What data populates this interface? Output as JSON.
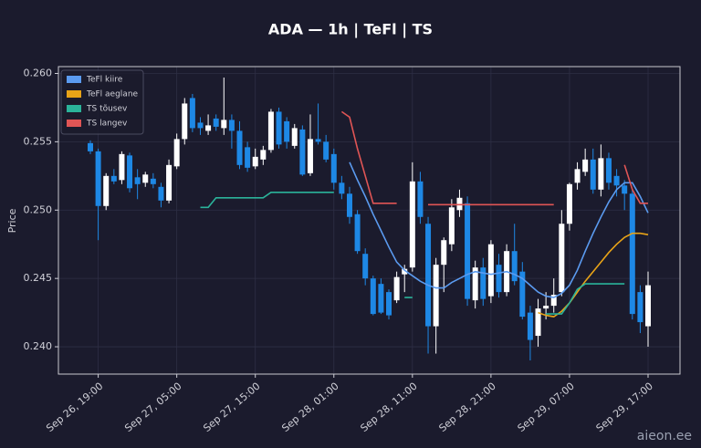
{
  "chart_data": {
    "type": "candlestick",
    "title": "ADA — 1h  |  TeFl  |  TS",
    "y_label": "Price",
    "watermark": "aieon.ee",
    "x": [
      "Sep 26, 18:00",
      "Sep 26, 19:00",
      "Sep 26, 20:00",
      "Sep 26, 21:00",
      "Sep 26, 22:00",
      "Sep 26, 23:00",
      "Sep 27, 00:00",
      "Sep 27, 01:00",
      "Sep 27, 02:00",
      "Sep 27, 03:00",
      "Sep 27, 04:00",
      "Sep 27, 05:00",
      "Sep 27, 06:00",
      "Sep 27, 07:00",
      "Sep 27, 08:00",
      "Sep 27, 09:00",
      "Sep 27, 10:00",
      "Sep 27, 11:00",
      "Sep 27, 12:00",
      "Sep 27, 13:00",
      "Sep 27, 14:00",
      "Sep 27, 15:00",
      "Sep 27, 16:00",
      "Sep 27, 17:00",
      "Sep 27, 18:00",
      "Sep 27, 19:00",
      "Sep 27, 20:00",
      "Sep 27, 21:00",
      "Sep 27, 22:00",
      "Sep 27, 23:00",
      "Sep 28, 00:00",
      "Sep 28, 01:00",
      "Sep 28, 02:00",
      "Sep 28, 03:00",
      "Sep 28, 04:00",
      "Sep 28, 05:00",
      "Sep 28, 06:00",
      "Sep 28, 07:00",
      "Sep 28, 08:00",
      "Sep 28, 09:00",
      "Sep 28, 10:00",
      "Sep 28, 11:00",
      "Sep 28, 12:00",
      "Sep 28, 13:00",
      "Sep 28, 14:00",
      "Sep 28, 15:00",
      "Sep 28, 16:00",
      "Sep 28, 17:00",
      "Sep 28, 18:00",
      "Sep 28, 19:00",
      "Sep 28, 20:00",
      "Sep 28, 21:00",
      "Sep 28, 22:00",
      "Sep 28, 23:00",
      "Sep 29, 00:00",
      "Sep 29, 01:00",
      "Sep 29, 02:00",
      "Sep 29, 03:00",
      "Sep 29, 04:00",
      "Sep 29, 05:00",
      "Sep 29, 06:00",
      "Sep 29, 07:00",
      "Sep 29, 08:00",
      "Sep 29, 09:00",
      "Sep 29, 10:00",
      "Sep 29, 11:00",
      "Sep 29, 12:00",
      "Sep 29, 13:00",
      "Sep 29, 14:00",
      "Sep 29, 15:00",
      "Sep 29, 16:00",
      "Sep 29, 17:00"
    ],
    "xticks": [
      "Sep 26, 19:00",
      "Sep 27, 05:00",
      "Sep 27, 15:00",
      "Sep 28, 01:00",
      "Sep 28, 11:00",
      "Sep 28, 21:00",
      "Sep 29, 07:00",
      "Sep 29, 17:00"
    ],
    "open": [
      0.2549,
      0.2543,
      0.2503,
      0.2525,
      0.2522,
      0.254,
      0.2524,
      0.252,
      0.2523,
      0.2517,
      0.2507,
      0.2532,
      0.2552,
      0.2582,
      0.2564,
      0.2558,
      0.2567,
      0.256,
      0.2566,
      0.2558,
      0.2546,
      0.2532,
      0.2537,
      0.2544,
      0.2572,
      0.2565,
      0.2547,
      0.2559,
      0.2527,
      0.2552,
      0.255,
      0.2541,
      0.252,
      0.2512,
      0.2497,
      0.2468,
      0.245,
      0.2446,
      0.244,
      0.2434,
      0.2453,
      0.2458,
      0.2521,
      0.249,
      0.2415,
      0.246,
      0.2475,
      0.25,
      0.2505,
      0.2434,
      0.2458,
      0.2437,
      0.246,
      0.244,
      0.247,
      0.2455,
      0.2425,
      0.2408,
      0.2428,
      0.243,
      0.244,
      0.249,
      0.252,
      0.2528,
      0.2537,
      0.2515,
      0.2538,
      0.2525,
      0.2518,
      0.2512,
      0.244,
      0.2415
    ],
    "high": [
      0.2551,
      0.2545,
      0.2527,
      0.253,
      0.2543,
      0.2542,
      0.253,
      0.2528,
      0.2527,
      0.252,
      0.2537,
      0.2556,
      0.2582,
      0.2585,
      0.2568,
      0.257,
      0.257,
      0.2597,
      0.257,
      0.2565,
      0.255,
      0.2545,
      0.2547,
      0.2574,
      0.2575,
      0.2568,
      0.2563,
      0.2562,
      0.257,
      0.2578,
      0.2555,
      0.2545,
      0.2525,
      0.2517,
      0.25,
      0.2472,
      0.2452,
      0.245,
      0.2442,
      0.2455,
      0.246,
      0.2535,
      0.2528,
      0.2495,
      0.2465,
      0.248,
      0.2508,
      0.2515,
      0.251,
      0.2463,
      0.2465,
      0.2478,
      0.2468,
      0.2475,
      0.249,
      0.2462,
      0.243,
      0.2435,
      0.244,
      0.245,
      0.25,
      0.252,
      0.2535,
      0.2545,
      0.2545,
      0.2548,
      0.2542,
      0.253,
      0.2522,
      0.2515,
      0.2445,
      0.2455
    ],
    "low": [
      0.2541,
      0.2478,
      0.25,
      0.2519,
      0.2519,
      0.2513,
      0.2508,
      0.2517,
      0.2516,
      0.2502,
      0.2505,
      0.253,
      0.2548,
      0.2557,
      0.2555,
      0.2555,
      0.2558,
      0.2555,
      0.2545,
      0.253,
      0.2528,
      0.253,
      0.2533,
      0.2542,
      0.2545,
      0.2545,
      0.2545,
      0.2525,
      0.2525,
      0.2548,
      0.2535,
      0.2515,
      0.2508,
      0.249,
      0.2468,
      0.2445,
      0.2423,
      0.2424,
      0.242,
      0.2432,
      0.244,
      0.2455,
      0.249,
      0.2395,
      0.2395,
      0.244,
      0.247,
      0.2495,
      0.243,
      0.2428,
      0.243,
      0.2432,
      0.2436,
      0.2437,
      0.2445,
      0.242,
      0.239,
      0.24,
      0.242,
      0.2425,
      0.2437,
      0.2485,
      0.2515,
      0.2525,
      0.2512,
      0.251,
      0.2515,
      0.251,
      0.25,
      0.242,
      0.241,
      0.24
    ],
    "close": [
      0.2543,
      0.2503,
      0.2525,
      0.2521,
      0.2541,
      0.2516,
      0.2519,
      0.2526,
      0.2519,
      0.2507,
      0.2533,
      0.2552,
      0.2578,
      0.256,
      0.256,
      0.2562,
      0.2561,
      0.2566,
      0.2558,
      0.2533,
      0.2531,
      0.2539,
      0.2544,
      0.2572,
      0.2548,
      0.255,
      0.256,
      0.2526,
      0.2552,
      0.255,
      0.2537,
      0.252,
      0.2512,
      0.2495,
      0.247,
      0.245,
      0.2424,
      0.2425,
      0.2423,
      0.2451,
      0.2457,
      0.2521,
      0.2495,
      0.2415,
      0.246,
      0.2478,
      0.2502,
      0.2509,
      0.2435,
      0.2458,
      0.2435,
      0.2475,
      0.244,
      0.247,
      0.2448,
      0.2422,
      0.2405,
      0.2428,
      0.243,
      0.2438,
      0.249,
      0.2519,
      0.253,
      0.2537,
      0.2515,
      0.2538,
      0.252,
      0.2518,
      0.2512,
      0.2424,
      0.2418,
      0.2445
    ],
    "up_color": "#ffffff",
    "down_color": "#1e88e5",
    "series": [
      {
        "name": "TeFl kiire",
        "color": "#5b9bf0",
        "values": [
          null,
          null,
          null,
          null,
          null,
          null,
          null,
          null,
          null,
          null,
          null,
          null,
          null,
          null,
          null,
          null,
          null,
          null,
          null,
          null,
          null,
          null,
          null,
          null,
          null,
          null,
          null,
          null,
          null,
          null,
          null,
          null,
          null,
          0.2535,
          0.2522,
          0.251,
          0.2497,
          0.2485,
          0.2473,
          0.2462,
          0.2456,
          0.2452,
          0.2448,
          0.2445,
          0.2443,
          0.2443,
          0.2447,
          0.245,
          0.2453,
          0.2455,
          0.2454,
          0.2453,
          0.2454,
          0.2455,
          0.2453,
          0.245,
          0.2445,
          0.244,
          0.2437,
          0.2436,
          0.2439,
          0.2445,
          0.2456,
          0.247,
          0.2483,
          0.2495,
          0.2506,
          0.2515,
          0.252,
          0.252,
          0.251,
          0.2498
        ]
      },
      {
        "name": "TeFl aeglane",
        "color": "#e8a317",
        "values": [
          null,
          null,
          null,
          null,
          null,
          null,
          null,
          null,
          null,
          null,
          null,
          null,
          null,
          null,
          null,
          null,
          null,
          null,
          null,
          null,
          null,
          null,
          null,
          null,
          null,
          null,
          null,
          null,
          null,
          null,
          null,
          null,
          null,
          null,
          null,
          null,
          null,
          null,
          null,
          null,
          null,
          null,
          null,
          null,
          null,
          null,
          null,
          null,
          null,
          null,
          null,
          null,
          null,
          null,
          null,
          null,
          null,
          0.2425,
          0.2423,
          0.2422,
          0.2426,
          0.2432,
          0.244,
          0.2448,
          0.2455,
          0.2462,
          0.2469,
          0.2475,
          0.248,
          0.2483,
          0.2483,
          0.2482
        ]
      },
      {
        "name": "TS tõusev",
        "color": "#2bb39a",
        "values": [
          null,
          null,
          null,
          null,
          null,
          null,
          null,
          null,
          null,
          null,
          null,
          null,
          null,
          null,
          0.2502,
          0.2502,
          0.2509,
          0.2509,
          0.2509,
          0.2509,
          0.2509,
          0.2509,
          0.2509,
          0.2513,
          0.2513,
          0.2513,
          0.2513,
          0.2513,
          0.2513,
          0.2513,
          0.2513,
          0.2513,
          null,
          null,
          null,
          null,
          null,
          null,
          null,
          null,
          0.2436,
          0.2436,
          null,
          null,
          null,
          null,
          null,
          null,
          null,
          null,
          null,
          null,
          null,
          null,
          null,
          null,
          null,
          null,
          0.2424,
          0.2424,
          0.2424,
          0.2432,
          0.2442,
          0.2446,
          0.2446,
          0.2446,
          0.2446,
          0.2446,
          0.2446,
          null,
          null,
          null
        ]
      },
      {
        "name": "TS langev",
        "color": "#e05555",
        "values": [
          null,
          null,
          null,
          null,
          null,
          null,
          null,
          null,
          null,
          null,
          null,
          null,
          null,
          null,
          null,
          null,
          null,
          null,
          null,
          null,
          null,
          null,
          null,
          null,
          null,
          null,
          null,
          null,
          null,
          null,
          null,
          null,
          0.2572,
          0.2568,
          0.2545,
          0.2525,
          0.2505,
          0.2505,
          0.2505,
          0.2505,
          null,
          null,
          null,
          0.2504,
          0.2504,
          0.2504,
          0.2504,
          0.2504,
          0.2504,
          0.2504,
          0.2504,
          0.2504,
          0.2504,
          0.2504,
          0.2504,
          0.2504,
          0.2504,
          0.2504,
          0.2504,
          0.2504,
          null,
          null,
          null,
          null,
          null,
          null,
          null,
          null,
          0.2533,
          0.2515,
          0.2505,
          0.2505
        ]
      }
    ],
    "ylim": [
      0.238,
      0.2605
    ],
    "yticks": [
      {
        "value": 0.24,
        "label": "0.240"
      },
      0.245,
      {
        "value": 0.25,
        "label": "0.250"
      },
      0.255,
      {
        "value": 0.26,
        "label": "0.260"
      }
    ],
    "grid": true,
    "legend": "upper left"
  }
}
